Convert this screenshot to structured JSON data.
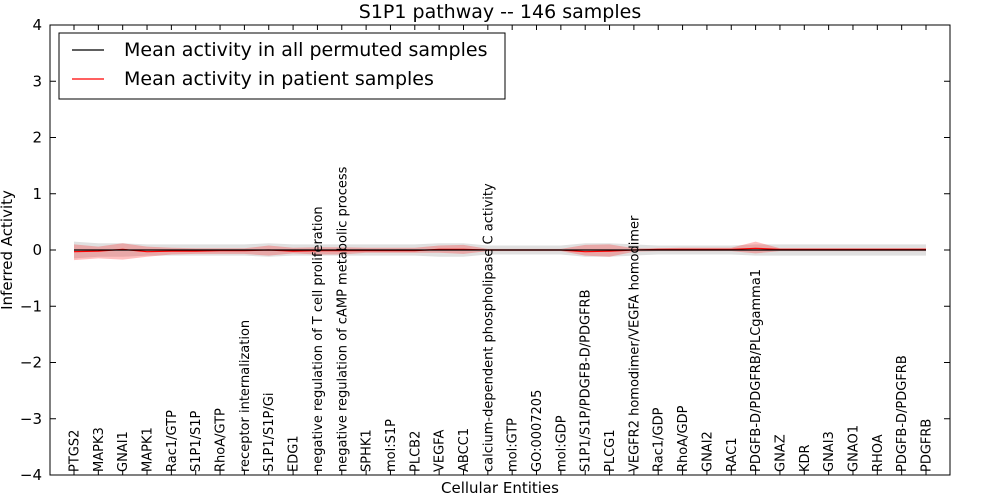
{
  "chart_data": {
    "type": "line",
    "title": "S1P1 pathway -- 146 samples",
    "xlabel": "Cellular Entities",
    "ylabel": "Inferred Activity",
    "ylim": [
      -4,
      4
    ],
    "yticks": [
      -4,
      -3,
      -2,
      -1,
      0,
      1,
      2,
      3,
      4
    ],
    "grid": false,
    "legend_position": "top-left",
    "categories": [
      "PTGS2",
      "MAPK3",
      "GNAI1",
      "MAPK1",
      "Rac1/GTP",
      "S1P1/S1P",
      "RhoA/GTP",
      "receptor internalization",
      "S1P1/S1P/Gi",
      "EDG1",
      "negative regulation of T cell proliferation",
      "negative regulation of cAMP metabolic process",
      "SPHK1",
      "mol:S1P",
      "PLCB2",
      "VEGFA",
      "ABCC1",
      "calcium-dependent phospholipase C activity",
      "mol:GTP",
      "GO:0007205",
      "mol:GDP",
      "S1P1/S1P/PDGFB-D/PDGFRB",
      "PLCG1",
      "VEGFR2 homodimer/VEGFA homodimer",
      "Rac1/GDP",
      "RhoA/GDP",
      "GNAI2",
      "RAC1",
      "PDGFB-D/PDGFRB/PLCgamma1",
      "GNAZ",
      "KDR",
      "GNAI3",
      "GNAO1",
      "RHOA",
      "PDGFB-D/PDGFRB",
      "PDGFRB"
    ],
    "series": [
      {
        "name": "Mean activity in all permuted samples",
        "color": "#000000",
        "values": [
          0.0,
          0.0,
          0.0,
          0.0,
          0.0,
          0.0,
          0.0,
          0.0,
          0.0,
          0.0,
          0.0,
          0.0,
          0.0,
          0.0,
          0.0,
          0.0,
          0.0,
          0.0,
          0.0,
          0.0,
          0.0,
          0.0,
          0.0,
          0.0,
          0.0,
          0.0,
          0.0,
          0.0,
          0.0,
          0.0,
          0.0,
          0.0,
          0.0,
          0.0,
          0.0,
          0.0
        ],
        "band_low": [
          -0.15,
          -0.12,
          -0.12,
          -0.1,
          -0.1,
          -0.1,
          -0.1,
          -0.1,
          -0.12,
          -0.1,
          -0.1,
          -0.1,
          -0.1,
          -0.1,
          -0.1,
          -0.12,
          -0.12,
          -0.08,
          -0.08,
          -0.08,
          -0.08,
          -0.12,
          -0.12,
          -0.1,
          -0.08,
          -0.08,
          -0.08,
          -0.08,
          -0.1,
          -0.1,
          -0.1,
          -0.1,
          -0.1,
          -0.1,
          -0.1,
          -0.1
        ],
        "band_high": [
          0.15,
          0.12,
          0.12,
          0.1,
          0.1,
          0.1,
          0.1,
          0.1,
          0.12,
          0.1,
          0.1,
          0.1,
          0.1,
          0.1,
          0.1,
          0.12,
          0.12,
          0.08,
          0.08,
          0.08,
          0.08,
          0.12,
          0.12,
          0.1,
          0.08,
          0.08,
          0.08,
          0.08,
          0.1,
          0.1,
          0.1,
          0.1,
          0.1,
          0.1,
          0.1,
          0.1
        ]
      },
      {
        "name": "Mean activity in patient samples",
        "color": "#ff0000",
        "values": [
          -0.03,
          -0.02,
          0.01,
          -0.03,
          -0.02,
          -0.02,
          -0.01,
          -0.01,
          0.0,
          -0.02,
          -0.01,
          -0.01,
          -0.01,
          -0.01,
          -0.01,
          0.01,
          0.01,
          0.0,
          0.0,
          0.0,
          0.0,
          -0.03,
          -0.02,
          0.0,
          0.01,
          0.01,
          0.01,
          0.01,
          0.03,
          0.01,
          0.01,
          0.01,
          0.01,
          0.01,
          0.01,
          0.01
        ],
        "band_low": [
          -0.18,
          -0.15,
          -0.17,
          -0.12,
          -0.08,
          -0.07,
          -0.07,
          -0.07,
          -0.1,
          -0.06,
          -0.08,
          -0.08,
          -0.05,
          -0.05,
          -0.05,
          -0.05,
          -0.07,
          -0.02,
          -0.02,
          -0.02,
          -0.02,
          -0.1,
          -0.12,
          -0.03,
          -0.02,
          -0.02,
          -0.02,
          -0.02,
          -0.06,
          -0.02,
          -0.02,
          -0.02,
          -0.02,
          -0.02,
          -0.02,
          -0.02
        ],
        "band_high": [
          0.1,
          0.06,
          0.12,
          0.06,
          0.04,
          0.03,
          0.03,
          0.03,
          0.08,
          0.04,
          0.05,
          0.05,
          0.04,
          0.04,
          0.04,
          0.08,
          0.09,
          0.02,
          0.02,
          0.02,
          0.02,
          0.09,
          0.1,
          0.03,
          0.03,
          0.04,
          0.04,
          0.04,
          0.15,
          0.03,
          0.03,
          0.03,
          0.03,
          0.03,
          0.03,
          0.03
        ]
      }
    ]
  }
}
